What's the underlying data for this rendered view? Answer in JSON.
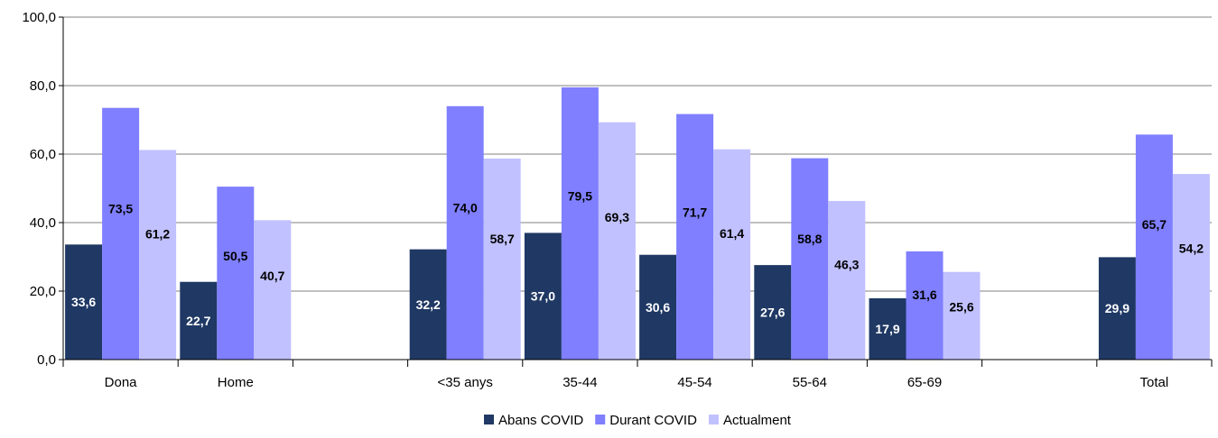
{
  "chart_data": {
    "type": "bar",
    "categories": [
      "Dona",
      "Home",
      "",
      "<35 anys",
      "35-44",
      "45-54",
      "55-64",
      "65-69",
      "",
      "Total"
    ],
    "series": [
      {
        "name": "Abans COVID",
        "color": "#1f3864",
        "values": [
          33.6,
          22.7,
          null,
          32.2,
          37.0,
          30.6,
          27.6,
          17.9,
          null,
          29.9
        ]
      },
      {
        "name": "Durant COVID",
        "color": "#7f7fff",
        "values": [
          73.5,
          50.5,
          null,
          74.0,
          79.5,
          71.7,
          58.8,
          31.6,
          null,
          65.7
        ]
      },
      {
        "name": "Actualment",
        "color": "#c1c1ff",
        "values": [
          61.2,
          40.7,
          null,
          58.7,
          69.3,
          61.4,
          46.3,
          25.6,
          null,
          54.2
        ]
      }
    ],
    "ylim": [
      0,
      100
    ],
    "yticks": [
      "0,0",
      "20,0",
      "40,0",
      "60,0",
      "80,0",
      "100,0"
    ],
    "grid": true,
    "legend_position": "bottom",
    "label_colors": [
      "#ffffff",
      "#000000",
      "#000000"
    ]
  }
}
